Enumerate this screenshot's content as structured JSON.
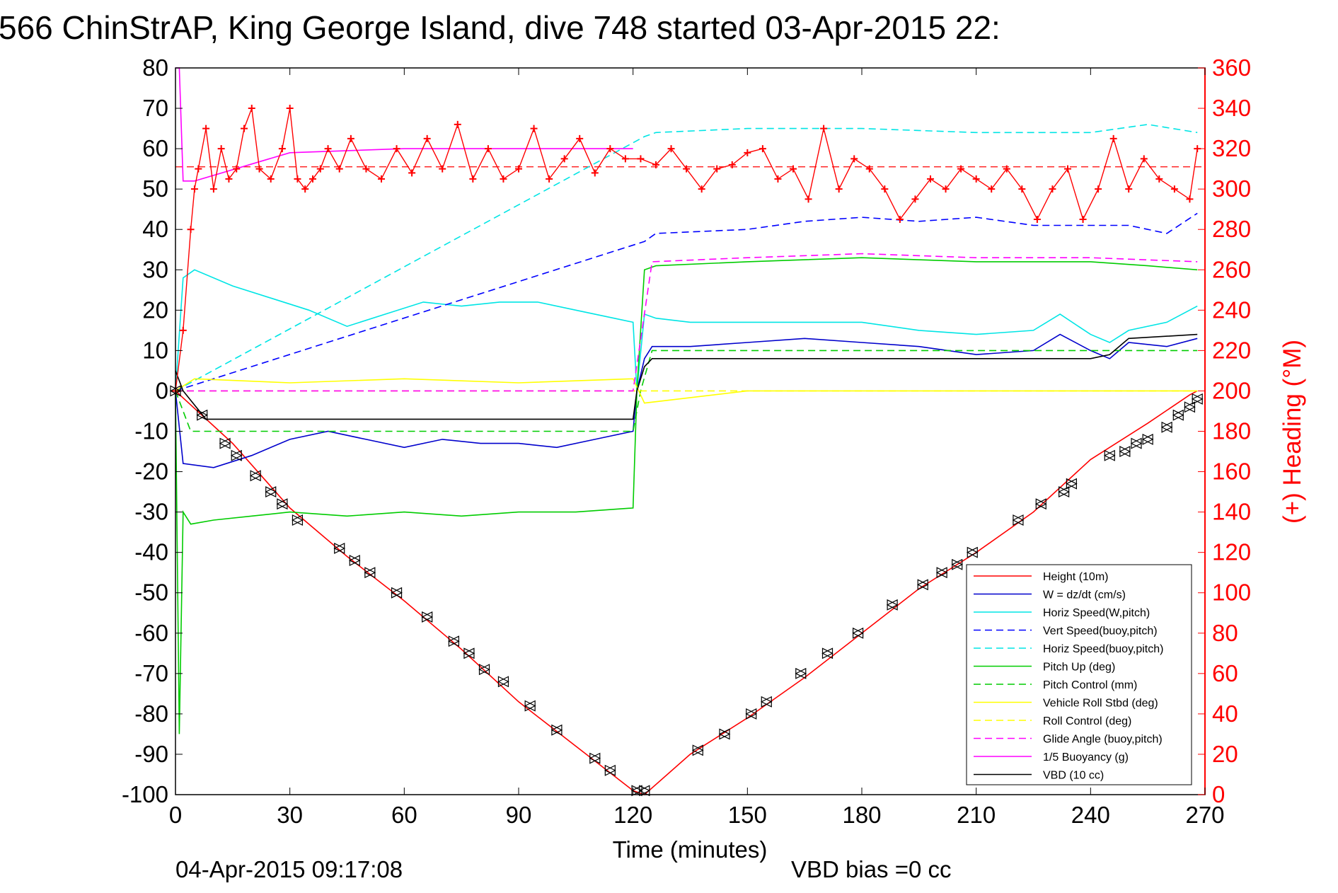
{
  "chart_data": {
    "type": "line",
    "title": "566 ChinStrAP, King George Island, dive 748 started 03-Apr-2015 22:",
    "xlabel": "Time (minutes)",
    "ylabel_right": "(+) Heading (°M)",
    "footer_left": "04-Apr-2015 09:17:08",
    "footer_right": "VBD bias =0 cc",
    "xlim": [
      0,
      270
    ],
    "ylim_left": [
      -100,
      80
    ],
    "ylim_right": [
      0,
      360
    ],
    "x_ticks": [
      "0",
      "30",
      "60",
      "90",
      "120",
      "150",
      "180",
      "210",
      "240",
      "270"
    ],
    "y_ticks_left": [
      "80",
      "70",
      "60",
      "50",
      "40",
      "30",
      "20",
      "10",
      "0",
      "-10",
      "-20",
      "-30",
      "-40",
      "-50",
      "-60",
      "-70",
      "-80",
      "-90",
      "-100"
    ],
    "y_ticks_right": [
      "360",
      "340",
      "320",
      "300",
      "280",
      "260",
      "240",
      "220",
      "200",
      "180",
      "160",
      "140",
      "120",
      "100",
      "80",
      "60",
      "40",
      "20",
      "0"
    ],
    "series": [
      {
        "name": "Height (10m)",
        "color": "#ff0000",
        "dash": "solid",
        "x": [
          0,
          15,
          30,
          45,
          60,
          75,
          90,
          105,
          120,
          123,
          135,
          150,
          165,
          180,
          195,
          210,
          225,
          240,
          255,
          266,
          268
        ],
        "y": [
          0,
          -13,
          -29,
          -41,
          -52,
          -64,
          -77,
          -88,
          -99,
          -100,
          -90,
          -81,
          -71,
          -60,
          -49,
          -40,
          -30,
          -17,
          -8,
          -1,
          0
        ]
      },
      {
        "name": "W = dz/dt (cm/s)",
        "color": "#0000cc",
        "dash": "solid",
        "x": [
          0,
          2,
          10,
          20,
          30,
          40,
          50,
          60,
          70,
          80,
          90,
          100,
          110,
          120,
          121,
          123,
          125,
          135,
          150,
          165,
          180,
          195,
          210,
          225,
          232,
          240,
          245,
          250,
          260,
          268
        ],
        "y": [
          0,
          -18,
          -19,
          -16,
          -12,
          -10,
          -12,
          -14,
          -12,
          -13,
          -13,
          -14,
          -12,
          -10,
          0,
          8,
          11,
          11,
          12,
          13,
          12,
          11,
          9,
          10,
          14,
          10,
          8,
          12,
          11,
          13
        ]
      },
      {
        "name": "Horiz Speed(W,pitch)",
        "color": "#00e5e5",
        "dash": "solid",
        "x": [
          0,
          2,
          5,
          15,
          25,
          35,
          45,
          55,
          65,
          75,
          85,
          95,
          105,
          115,
          120,
          121,
          123,
          126,
          135,
          150,
          165,
          180,
          195,
          210,
          225,
          232,
          240,
          245,
          250,
          260,
          268
        ],
        "y": [
          0,
          28,
          30,
          26,
          23,
          20,
          16,
          19,
          22,
          21,
          22,
          22,
          20,
          18,
          17,
          0,
          19,
          18,
          17,
          17,
          17,
          17,
          15,
          14,
          15,
          19,
          14,
          12,
          15,
          17,
          21
        ]
      },
      {
        "name": "Vert Speed(buoy,pitch)",
        "color": "#0000ff",
        "dash": "dashed",
        "x": [
          0,
          123,
          126,
          150,
          165,
          180,
          195,
          210,
          225,
          240,
          250,
          260,
          268
        ],
        "y": [
          0,
          37,
          39,
          40,
          42,
          43,
          42,
          43,
          41,
          41,
          41,
          39,
          44
        ]
      },
      {
        "name": "Horiz Speed(buoy,pitch)",
        "color": "#00e5e5",
        "dash": "dashed",
        "x": [
          0,
          123,
          126,
          150,
          180,
          210,
          240,
          255,
          268
        ],
        "y": [
          0,
          63,
          64,
          65,
          65,
          64,
          64,
          66,
          64
        ]
      },
      {
        "name": "Pitch Up (deg)",
        "color": "#00cc00",
        "dash": "solid",
        "x": [
          0,
          1,
          2,
          4,
          10,
          20,
          30,
          45,
          60,
          75,
          90,
          105,
          120,
          121,
          123,
          126,
          150,
          180,
          210,
          240,
          255,
          268
        ],
        "y": [
          0,
          -85,
          -30,
          -33,
          -32,
          -31,
          -30,
          -31,
          -30,
          -31,
          -30,
          -30,
          -29,
          0,
          30,
          31,
          32,
          33,
          32,
          32,
          31,
          30
        ]
      },
      {
        "name": "Pitch Control (mm)",
        "color": "#00cc00",
        "dash": "dashed",
        "x": [
          0,
          4,
          60,
          120,
          122,
          125,
          180,
          240,
          268
        ],
        "y": [
          0,
          -10,
          -10,
          -10,
          0,
          10,
          10,
          10,
          10
        ]
      },
      {
        "name": "Vehicle Roll Stbd (deg)",
        "color": "#ffff00",
        "dash": "solid",
        "x": [
          0,
          5,
          30,
          60,
          90,
          120,
          123,
          150,
          180,
          210,
          240,
          268
        ],
        "y": [
          0,
          3,
          2,
          3,
          2,
          3,
          -3,
          0,
          0,
          0,
          0,
          0
        ]
      },
      {
        "name": "Roll Control (deg)",
        "color": "#ffff00",
        "dash": "dashed",
        "x": [
          0,
          120,
          125,
          268
        ],
        "y": [
          0,
          0,
          0,
          0
        ]
      },
      {
        "name": "Glide Angle (buoy,pitch)",
        "color": "#ff00ff",
        "dash": "dashed",
        "x": [
          0,
          120,
          125,
          150,
          180,
          210,
          240,
          268
        ],
        "y": [
          0,
          0,
          32,
          33,
          34,
          33,
          33,
          32
        ]
      },
      {
        "name": "1/5 Buoyancy (g)",
        "color": "#ff00ff",
        "dash": "solid",
        "x": [
          0,
          1,
          2,
          5,
          30,
          60,
          90,
          110,
          120
        ],
        "y": [
          80,
          80,
          52,
          52,
          59,
          60,
          60,
          60,
          60
        ]
      },
      {
        "name": "VBD (10 cc)",
        "color": "#000000",
        "dash": "solid",
        "x": [
          0,
          2,
          8,
          60,
          120,
          121,
          123,
          125,
          180,
          240,
          245,
          250,
          268
        ],
        "y": [
          5,
          0,
          -7,
          -7,
          -7,
          0,
          6,
          8,
          8,
          8,
          9,
          13,
          14
        ]
      }
    ],
    "heading_series": {
      "name": "(+) Heading (°M)",
      "color": "#ff0000",
      "axis": "right",
      "marker": "+",
      "x": [
        0,
        2,
        4,
        5,
        6,
        8,
        10,
        12,
        14,
        16,
        18,
        20,
        22,
        25,
        28,
        30,
        32,
        34,
        36,
        38,
        40,
        43,
        46,
        50,
        54,
        58,
        62,
        66,
        70,
        74,
        78,
        82,
        86,
        90,
        94,
        98,
        102,
        106,
        110,
        114,
        118,
        122,
        126,
        130,
        134,
        138,
        142,
        146,
        150,
        154,
        158,
        162,
        166,
        170,
        174,
        178,
        182,
        186,
        190,
        194,
        198,
        202,
        206,
        210,
        214,
        218,
        222,
        226,
        230,
        234,
        238,
        242,
        246,
        250,
        254,
        258,
        262,
        266,
        268
      ],
      "y": [
        200,
        230,
        280,
        300,
        310,
        330,
        300,
        320,
        305,
        310,
        330,
        340,
        310,
        305,
        320,
        340,
        305,
        300,
        305,
        310,
        320,
        310,
        325,
        310,
        305,
        320,
        308,
        325,
        310,
        332,
        305,
        320,
        305,
        310,
        330,
        305,
        315,
        325,
        308,
        320,
        315,
        315,
        312,
        320,
        310,
        300,
        310,
        312,
        318,
        320,
        305,
        310,
        295,
        330,
        300,
        315,
        310,
        300,
        285,
        295,
        305,
        300,
        310,
        305,
        300,
        310,
        300,
        285,
        300,
        310,
        285,
        300,
        325,
        300,
        315,
        305,
        300,
        295,
        320
      ]
    },
    "reference_lines": [
      {
        "color": "#ff0000",
        "dash": "dashed",
        "axis": "right",
        "value": 311
      }
    ],
    "triangle_markers": {
      "x": [
        0,
        7,
        13,
        16,
        21,
        25,
        28,
        32,
        43,
        47,
        51,
        58,
        66,
        73,
        77,
        81,
        86,
        93,
        100,
        110,
        114,
        121,
        123,
        137,
        144,
        151,
        155,
        164,
        171,
        179,
        188,
        196,
        201,
        205,
        209,
        221,
        227,
        233,
        235,
        245,
        249,
        252,
        255,
        260,
        263,
        266,
        268
      ],
      "y": [
        0,
        -6,
        -13,
        -16,
        -21,
        -25,
        -28,
        -32,
        -39,
        -42,
        -45,
        -50,
        -56,
        -62,
        -65,
        -69,
        -72,
        -78,
        -84,
        -91,
        -94,
        -99,
        -99,
        -89,
        -85,
        -80,
        -77,
        -70,
        -65,
        -60,
        -53,
        -48,
        -45,
        -43,
        -40,
        -32,
        -28,
        -25,
        -23,
        -16,
        -15,
        -13,
        -12,
        -9,
        -6,
        -4,
        -2
      ]
    },
    "legend_position": "bottom-right",
    "grid": false
  }
}
